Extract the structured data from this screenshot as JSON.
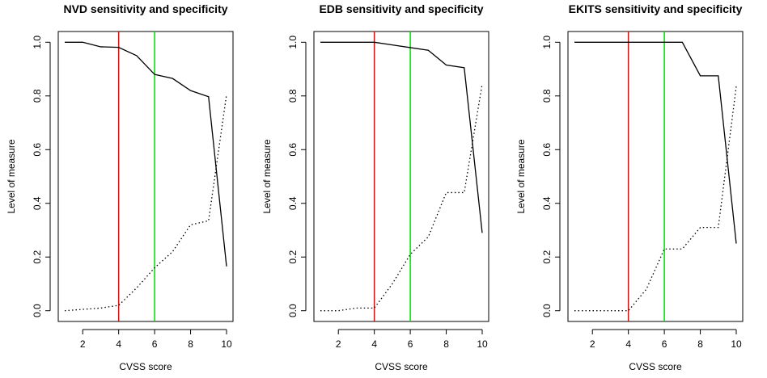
{
  "chart_data": [
    {
      "type": "line",
      "title": "NVD sensitivity and specificity",
      "xlabel": "CVSS score",
      "ylabel": "Level of measure",
      "xlim": [
        1,
        10
      ],
      "ylim": [
        0,
        1
      ],
      "xticks": [
        2,
        4,
        6,
        8,
        10
      ],
      "yticks": [
        0.0,
        0.2,
        0.4,
        0.6,
        0.8,
        1.0
      ],
      "xtick_labels": [
        "2",
        "4",
        "6",
        "8",
        "10"
      ],
      "ytick_labels": [
        "0.0",
        "0.2",
        "0.4",
        "0.6",
        "0.8",
        "1.0"
      ],
      "grid": false,
      "legend": "none",
      "x": [
        1,
        2,
        3,
        4,
        5,
        6,
        7,
        8,
        9,
        10
      ],
      "series": [
        {
          "style": "solid",
          "values": [
            1.0,
            1.0,
            0.983,
            0.981,
            0.95,
            0.88,
            0.865,
            0.82,
            0.797,
            0.165
          ]
        },
        {
          "style": "dotted",
          "values": [
            0.0,
            0.005,
            0.01,
            0.02,
            0.085,
            0.16,
            0.22,
            0.32,
            0.335,
            0.805
          ]
        }
      ],
      "vlines": [
        {
          "x": 4,
          "color": "#ff0000"
        },
        {
          "x": 6,
          "color": "#00dd00"
        }
      ]
    },
    {
      "type": "line",
      "title": "EDB sensitivity and specificity",
      "xlabel": "CVSS score",
      "ylabel": "Level of measure",
      "xlim": [
        1,
        10
      ],
      "ylim": [
        0,
        1
      ],
      "xticks": [
        2,
        4,
        6,
        8,
        10
      ],
      "yticks": [
        0.0,
        0.2,
        0.4,
        0.6,
        0.8,
        1.0
      ],
      "xtick_labels": [
        "2",
        "4",
        "6",
        "8",
        "10"
      ],
      "ytick_labels": [
        "0.0",
        "0.2",
        "0.4",
        "0.6",
        "0.8",
        "1.0"
      ],
      "grid": false,
      "legend": "none",
      "x": [
        1,
        2,
        3,
        4,
        5,
        6,
        7,
        8,
        9,
        10
      ],
      "series": [
        {
          "style": "solid",
          "values": [
            1.0,
            1.0,
            1.0,
            1.0,
            0.99,
            0.98,
            0.97,
            0.915,
            0.905,
            0.29
          ]
        },
        {
          "style": "dotted",
          "values": [
            0.0,
            0.0,
            0.01,
            0.01,
            0.1,
            0.21,
            0.275,
            0.44,
            0.44,
            0.845
          ]
        }
      ],
      "vlines": [
        {
          "x": 4,
          "color": "#ff0000"
        },
        {
          "x": 6,
          "color": "#00dd00"
        }
      ]
    },
    {
      "type": "line",
      "title": "EKITS sensitivity and specificity",
      "xlabel": "CVSS score",
      "ylabel": "Level of measure",
      "xlim": [
        1,
        10
      ],
      "ylim": [
        0,
        1
      ],
      "xticks": [
        2,
        4,
        6,
        8,
        10
      ],
      "yticks": [
        0.0,
        0.2,
        0.4,
        0.6,
        0.8,
        1.0
      ],
      "xtick_labels": [
        "2",
        "4",
        "6",
        "8",
        "10"
      ],
      "ytick_labels": [
        "0.0",
        "0.2",
        "0.4",
        "0.6",
        "0.8",
        "1.0"
      ],
      "grid": false,
      "legend": "none",
      "x": [
        1,
        2,
        3,
        4,
        5,
        6,
        7,
        8,
        9,
        10
      ],
      "series": [
        {
          "style": "solid",
          "values": [
            1.0,
            1.0,
            1.0,
            1.0,
            1.0,
            1.0,
            1.0,
            0.875,
            0.875,
            0.25
          ]
        },
        {
          "style": "dotted",
          "values": [
            0.0,
            0.0,
            0.0,
            0.0,
            0.08,
            0.23,
            0.23,
            0.31,
            0.31,
            0.835
          ]
        }
      ],
      "vlines": [
        {
          "x": 4,
          "color": "#ff0000"
        },
        {
          "x": 6,
          "color": "#00dd00"
        }
      ]
    }
  ]
}
